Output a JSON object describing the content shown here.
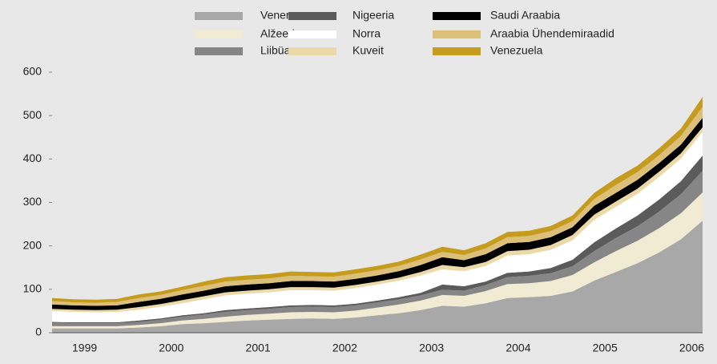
{
  "chart_data": {
    "type": "stacked_area",
    "categories": [
      null,
      "1999",
      null,
      null,
      null,
      "2000",
      null,
      null,
      null,
      "2001",
      null,
      null,
      null,
      "2002",
      null,
      null,
      null,
      "2003",
      null,
      null,
      null,
      "2004",
      null,
      null,
      null,
      "2005",
      null,
      null,
      null,
      "2006",
      null
    ],
    "ylim": [
      0,
      600
    ],
    "yticks": [
      0,
      100,
      200,
      300,
      400,
      500,
      600
    ],
    "series": [
      {
        "name": "Venemaa",
        "color": "#a8a8a8",
        "values": [
          10,
          10,
          10,
          10,
          12,
          15,
          20,
          22,
          25,
          28,
          30,
          32,
          33,
          32,
          35,
          40,
          45,
          52,
          62,
          60,
          68,
          80,
          82,
          85,
          95,
          120,
          140,
          160,
          185,
          215,
          258
        ]
      },
      {
        "name": "Alžeeria",
        "color": "#f2ebd3",
        "values": [
          5,
          5,
          5,
          5,
          6,
          7,
          8,
          10,
          12,
          13,
          14,
          15,
          15,
          15,
          16,
          18,
          20,
          22,
          25,
          25,
          28,
          32,
          32,
          34,
          38,
          42,
          48,
          52,
          56,
          60,
          65
        ]
      },
      {
        "name": "Liibüa",
        "color": "#868686",
        "values": [
          8,
          7,
          7,
          7,
          7,
          8,
          9,
          10,
          11,
          11,
          11,
          12,
          12,
          12,
          12,
          12,
          12,
          12,
          12,
          12,
          14,
          16,
          17,
          18,
          20,
          26,
          30,
          33,
          38,
          44,
          50
        ]
      },
      {
        "name": "Nigeeria",
        "color": "#5b5b5b",
        "values": [
          2,
          2,
          2,
          2,
          3,
          3,
          3,
          3,
          4,
          4,
          4,
          4,
          4,
          4,
          4,
          4,
          5,
          6,
          12,
          10,
          8,
          10,
          10,
          12,
          15,
          20,
          22,
          25,
          28,
          30,
          35
        ]
      },
      {
        "name": "Norra",
        "color": "#ffffff",
        "values": [
          25,
          24,
          23,
          24,
          25,
          27,
          28,
          32,
          34,
          34,
          34,
          35,
          34,
          34,
          36,
          37,
          38,
          40,
          35,
          35,
          36,
          40,
          40,
          42,
          45,
          52,
          50,
          50,
          52,
          52,
          55
        ]
      },
      {
        "name": "Kuveit",
        "color": "#ecd9a8",
        "values": [
          5,
          5,
          5,
          5,
          6,
          6,
          7,
          7,
          7,
          7,
          7,
          7,
          7,
          7,
          7,
          7,
          7,
          8,
          10,
          9,
          9,
          10,
          10,
          11,
          12,
          12,
          12,
          12,
          12,
          12,
          10
        ]
      },
      {
        "name": "Saudi Araabia",
        "color": "#000000",
        "values": [
          10,
          10,
          10,
          10,
          12,
          12,
          13,
          13,
          14,
          14,
          14,
          14,
          14,
          14,
          14,
          14,
          15,
          16,
          18,
          16,
          18,
          18,
          18,
          18,
          18,
          20,
          20,
          20,
          20,
          20,
          22
        ]
      },
      {
        "name": "Araabia Ühendemiraadid",
        "color": "#dcc07a",
        "values": [
          8,
          7,
          7,
          8,
          9,
          9,
          10,
          11,
          11,
          11,
          11,
          12,
          11,
          11,
          12,
          12,
          12,
          13,
          12,
          12,
          13,
          14,
          14,
          14,
          14,
          16,
          18,
          18,
          18,
          20,
          25
        ]
      },
      {
        "name": "Venezuela",
        "color": "#c69c1e",
        "values": [
          7,
          7,
          7,
          7,
          8,
          8,
          8,
          10,
          10,
          10,
          10,
          10,
          10,
          10,
          10,
          10,
          10,
          11,
          12,
          11,
          12,
          12,
          12,
          12,
          13,
          14,
          16,
          15,
          16,
          17,
          23
        ]
      }
    ]
  }
}
